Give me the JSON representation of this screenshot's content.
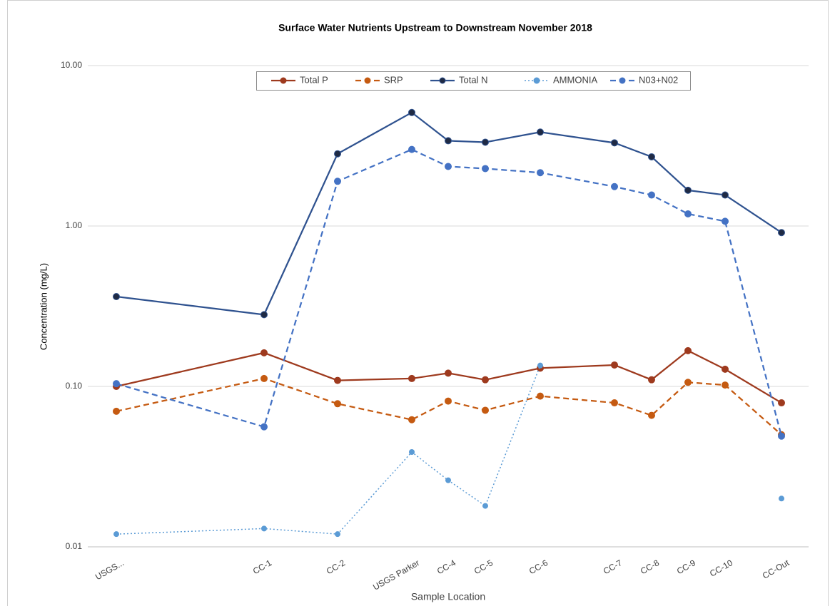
{
  "chart_data": {
    "type": "line",
    "title": "Surface Water Nutrients Upstream to Downstream November 2018",
    "x_label": "Sample Location",
    "y_label": "Concentration (mg/L)",
    "log_y": true,
    "grid": true,
    "legend": "top",
    "categories": [
      "USGS...",
      "CC-1",
      "CC-2",
      "USGS Parker",
      "CC-4",
      "CC-5",
      "CC-6",
      "CC-7",
      "CC-8",
      "CC-9",
      "CC-10",
      "CC-Out"
    ],
    "ylim": [
      0.01,
      10
    ],
    "yticks": [
      {
        "value": 0.01,
        "label": "0.01"
      },
      {
        "value": 0.1,
        "label": "0.10"
      },
      {
        "value": 1,
        "label": "1.00"
      },
      {
        "value": 10,
        "label": "10.00"
      }
    ],
    "series": [
      {
        "name": "Total P",
        "color": "#9e3a1e",
        "dash": "solid",
        "values": [
          0.1,
          0.162,
          0.109,
          0.112,
          0.121,
          0.11,
          0.13,
          0.136,
          0.11,
          0.167,
          0.128,
          0.079
        ]
      },
      {
        "name": "SRP",
        "color": "#c55a11",
        "dash": "dashed",
        "values": [
          0.07,
          0.112,
          0.078,
          0.062,
          0.081,
          0.071,
          0.087,
          0.079,
          0.066,
          0.106,
          0.102,
          0.05
        ]
      },
      {
        "name": "Total N",
        "color": "#2f528f",
        "dash": "solid",
        "values": [
          0.363,
          0.28,
          2.82,
          5.1,
          3.4,
          3.33,
          3.85,
          3.3,
          2.7,
          1.67,
          1.56,
          0.91
        ]
      },
      {
        "name": "AMMONIA",
        "color": "#5b9bd5",
        "dash": "dotted",
        "values": [
          0.012,
          0.013,
          0.012,
          0.039,
          0.026,
          0.018,
          0.135,
          null,
          null,
          null,
          null,
          0.02
        ]
      },
      {
        "name": "N03+N02",
        "color": "#4472c4",
        "dash": "dashed",
        "values": [
          0.104,
          0.056,
          1.9,
          3.0,
          2.35,
          2.28,
          2.15,
          1.76,
          1.56,
          1.19,
          1.07,
          0.049
        ]
      }
    ]
  }
}
